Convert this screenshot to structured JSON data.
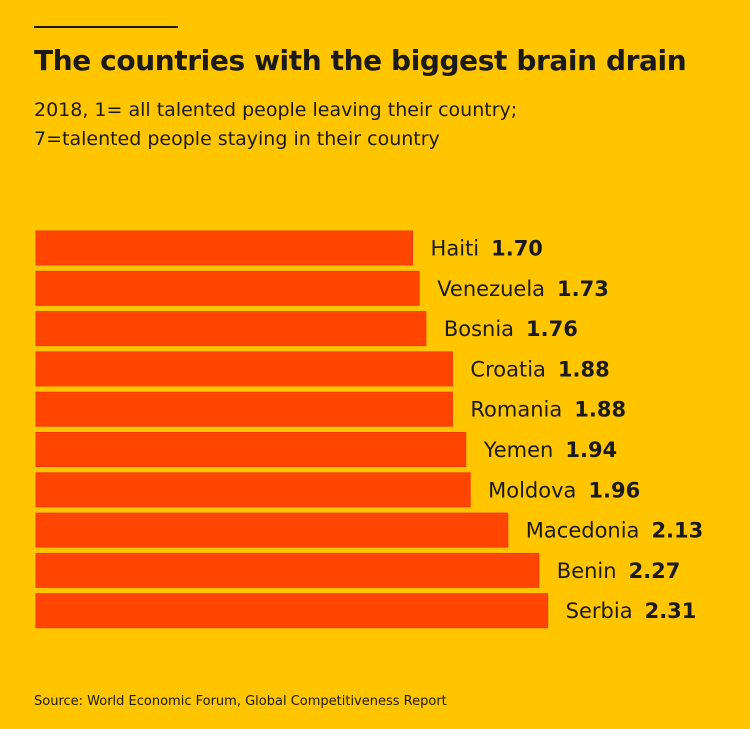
{
  "colors": {
    "background": "#FFC600",
    "bar": "#FF4500",
    "bar_edge": "#F23A10",
    "text": "#1a1a1a"
  },
  "header": {
    "title": "The countries with the biggest brain drain",
    "subtitle_line1": "2018, 1= all talented people leaving their country;",
    "subtitle_line2": "7=talented people staying in their country"
  },
  "chart_data": {
    "type": "bar",
    "orientation": "horizontal",
    "title": "The countries with the biggest brain drain",
    "subtitle": "2018, 1= all talented people leaving their country; 7=talented people staying in their country",
    "categories": [
      "Haiti",
      "Venezuela",
      "Bosnia",
      "Croatia",
      "Romania",
      "Yemen",
      "Moldova",
      "Macedonia",
      "Benin",
      "Serbia"
    ],
    "values": [
      1.7,
      1.73,
      1.76,
      1.88,
      1.88,
      1.94,
      1.96,
      2.13,
      2.27,
      2.31
    ],
    "value_labels": [
      "1.70",
      "1.73",
      "1.76",
      "1.88",
      "1.88",
      "1.94",
      "1.96",
      "2.13",
      "2.27",
      "2.31"
    ],
    "xlabel": "",
    "ylabel": "",
    "grid": false,
    "legend": "none"
  },
  "footer": {
    "source": "Source: World Economic Forum, Global Competitiveness Report"
  }
}
